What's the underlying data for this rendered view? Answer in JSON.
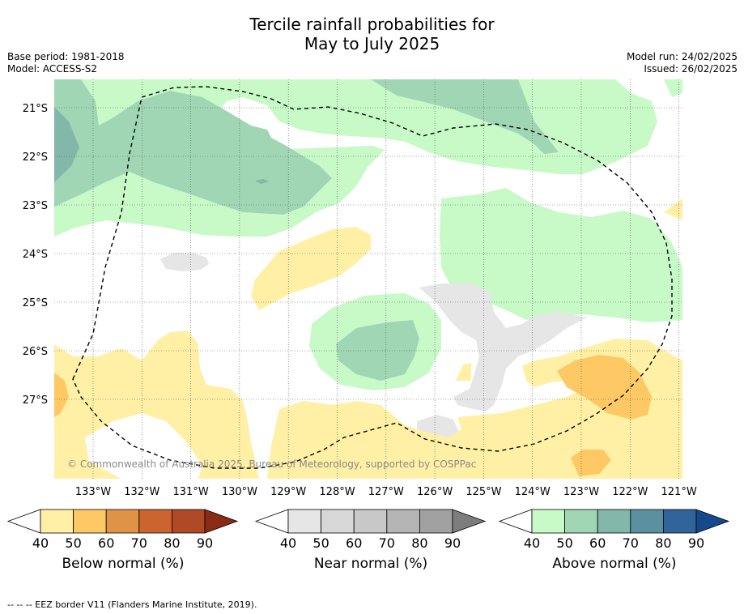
{
  "title_line1": "Tercile rainfall probabilities for",
  "title_line2": "May to July 2025",
  "base_period": "Base period: 1981-2018",
  "model": "Model: ACCESS-S2",
  "model_run": "Model run: 24/02/2025",
  "issued": "Issued: 26/02/2025",
  "copyright": "© Commonwealth of Australia 2025, Bureau of Meteorology, supported by COSPPac",
  "lat_labels": [
    "21°S",
    "22°S",
    "23°S",
    "24°S",
    "25°S",
    "26°S",
    "27°S"
  ],
  "lon_labels": [
    "133°W",
    "132°W",
    "131°W",
    "130°W",
    "129°W",
    "128°W",
    "127°W",
    "126°W",
    "125°W",
    "124°W",
    "123°W",
    "122°W",
    "121°W"
  ],
  "colorbars": [
    {
      "label": "Below normal (%)",
      "ticks": [
        "40",
        "50",
        "60",
        "70",
        "80",
        "90"
      ],
      "colors": [
        "#fff0a5",
        "#fec964",
        "#df9346",
        "#cc6430",
        "#b04a26",
        "#8c2b14"
      ]
    },
    {
      "label": "Near normal (%)",
      "ticks": [
        "40",
        "50",
        "60",
        "70",
        "80",
        "90"
      ],
      "colors": [
        "#e6e6e6",
        "#d8d8d8",
        "#c8c8c8",
        "#b5b5b5",
        "#a1a1a1",
        "#7d7d7d"
      ]
    },
    {
      "label": "Above normal (%)",
      "ticks": [
        "40",
        "50",
        "60",
        "70",
        "80",
        "90"
      ],
      "colors": [
        "#c8fac8",
        "#a0d6b4",
        "#82b7aa",
        "#5a90a0",
        "#30649a",
        "#144a8c"
      ]
    }
  ],
  "footer": "--  --  -- EEZ border V11 (Flanders Marine Institute, 2019)."
}
